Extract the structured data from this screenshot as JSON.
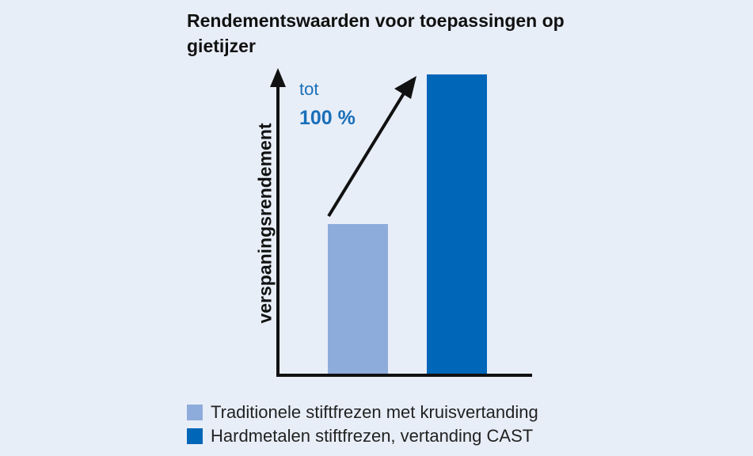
{
  "chart_data": {
    "type": "bar",
    "title": "Rendementswaarden voor toepassingen op gietijzer",
    "ylabel": "verspaningsrendement",
    "xlabel": "",
    "categories": [
      "Traditionele stiftfrezen met kruisvertanding",
      "Hardmetalen stiftfrezen, vertanding CAST"
    ],
    "values": [
      100,
      200
    ],
    "ylim": [
      0,
      210
    ],
    "grid": false,
    "legend": "bottom",
    "colors": [
      "#8eacdb",
      "#0066b8"
    ],
    "annotation": {
      "prefix": "tot",
      "value": "100 %",
      "color": "#1a6fb8"
    }
  },
  "legend": {
    "items": [
      {
        "label": "Traditionele stiftfrezen met kruisvertanding",
        "color": "#8eacdb"
      },
      {
        "label": "Hardmetalen stiftfrezen, vertanding CAST",
        "color": "#0066b8"
      }
    ]
  }
}
